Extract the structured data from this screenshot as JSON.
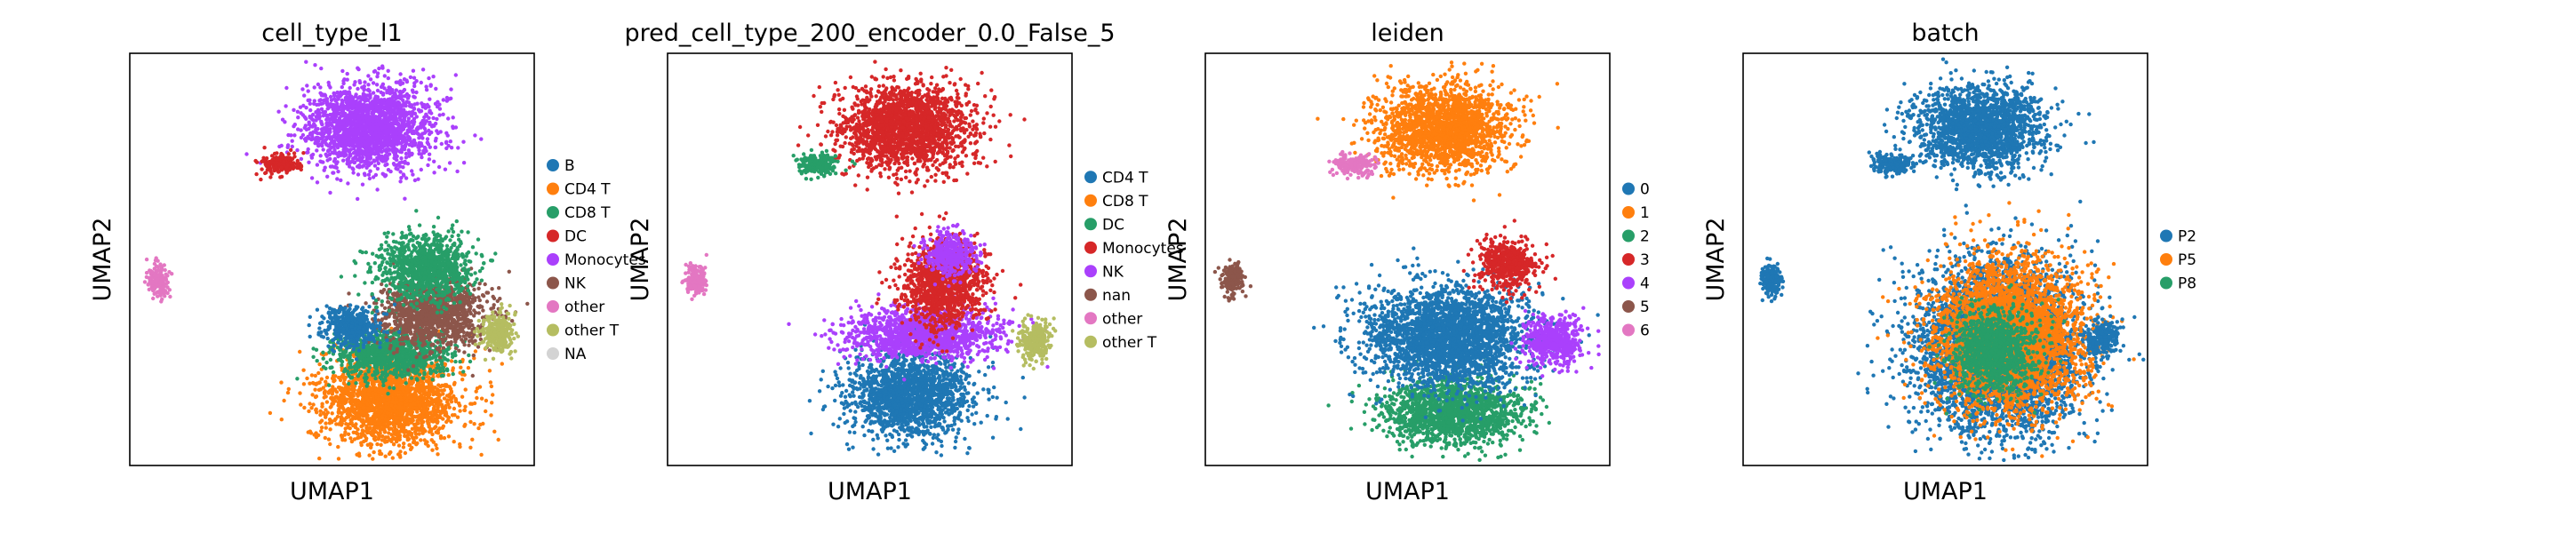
{
  "chart_data": [
    {
      "type": "scatter",
      "title": "cell_type_l1",
      "xlabel": "UMAP1",
      "ylabel": "UMAP2",
      "grid": false,
      "legend_placement": "right",
      "legend": [
        {
          "name": "B",
          "color": "#1f77b4"
        },
        {
          "name": "CD4 T",
          "color": "#ff7f0e"
        },
        {
          "name": "CD8 T",
          "color": "#279e68"
        },
        {
          "name": "DC",
          "color": "#d62728"
        },
        {
          "name": "Monocytes",
          "color": "#aa40fc"
        },
        {
          "name": "NK",
          "color": "#8c564b"
        },
        {
          "name": "other",
          "color": "#e377c2"
        },
        {
          "name": "other T",
          "color": "#b5bd61"
        },
        {
          "name": "NA",
          "color": "#d3d3d3"
        }
      ],
      "clusters": [
        {
          "c": 4,
          "cx": 0.59,
          "cy": 0.82,
          "rx": 0.16,
          "ry": 0.105
        },
        {
          "c": 3,
          "cx": 0.37,
          "cy": 0.73,
          "rx": 0.05,
          "ry": 0.025
        },
        {
          "c": 6,
          "cx": 0.07,
          "cy": 0.45,
          "rx": 0.025,
          "ry": 0.04
        },
        {
          "c": 1,
          "cx": 0.64,
          "cy": 0.16,
          "rx": 0.17,
          "ry": 0.11
        },
        {
          "c": 2,
          "cx": 0.65,
          "cy": 0.27,
          "rx": 0.14,
          "ry": 0.06
        },
        {
          "c": 5,
          "cx": 0.75,
          "cy": 0.37,
          "rx": 0.13,
          "ry": 0.08
        },
        {
          "c": 2,
          "cx": 0.73,
          "cy": 0.48,
          "rx": 0.11,
          "ry": 0.08
        },
        {
          "c": 0,
          "cx": 0.55,
          "cy": 0.34,
          "rx": 0.07,
          "ry": 0.05
        },
        {
          "c": 7,
          "cx": 0.91,
          "cy": 0.32,
          "rx": 0.04,
          "ry": 0.05
        }
      ]
    },
    {
      "type": "scatter",
      "title": "pred_cell_type_200_encoder_0.0_False_5",
      "xlabel": "UMAP1",
      "ylabel": "UMAP2",
      "grid": false,
      "legend_placement": "right",
      "legend": [
        {
          "name": "CD4 T",
          "color": "#1f77b4"
        },
        {
          "name": "CD8 T",
          "color": "#ff7f0e"
        },
        {
          "name": "DC",
          "color": "#279e68"
        },
        {
          "name": "Monocytes",
          "color": "#d62728"
        },
        {
          "name": "NK",
          "color": "#aa40fc"
        },
        {
          "name": "nan",
          "color": "#8c564b"
        },
        {
          "name": "other",
          "color": "#e377c2"
        },
        {
          "name": "other T",
          "color": "#b5bd61"
        }
      ],
      "clusters": [
        {
          "c": 3,
          "cx": 0.59,
          "cy": 0.82,
          "rx": 0.16,
          "ry": 0.105
        },
        {
          "c": 2,
          "cx": 0.37,
          "cy": 0.73,
          "rx": 0.05,
          "ry": 0.025
        },
        {
          "c": 6,
          "cx": 0.07,
          "cy": 0.45,
          "rx": 0.025,
          "ry": 0.04
        },
        {
          "c": 0,
          "cx": 0.6,
          "cy": 0.17,
          "rx": 0.15,
          "ry": 0.1
        },
        {
          "c": 4,
          "cx": 0.63,
          "cy": 0.32,
          "rx": 0.19,
          "ry": 0.06
        },
        {
          "c": 3,
          "cx": 0.68,
          "cy": 0.44,
          "rx": 0.1,
          "ry": 0.1
        },
        {
          "c": 4,
          "cx": 0.7,
          "cy": 0.51,
          "rx": 0.06,
          "ry": 0.05
        },
        {
          "c": 7,
          "cx": 0.91,
          "cy": 0.3,
          "rx": 0.04,
          "ry": 0.05
        }
      ]
    },
    {
      "type": "scatter",
      "title": "leiden",
      "xlabel": "UMAP1",
      "ylabel": "UMAP2",
      "grid": false,
      "legend_placement": "right",
      "legend": [
        {
          "name": "0",
          "color": "#1f77b4"
        },
        {
          "name": "1",
          "color": "#ff7f0e"
        },
        {
          "name": "2",
          "color": "#279e68"
        },
        {
          "name": "3",
          "color": "#d62728"
        },
        {
          "name": "4",
          "color": "#aa40fc"
        },
        {
          "name": "5",
          "color": "#8c564b"
        },
        {
          "name": "6",
          "color": "#e377c2"
        }
      ],
      "clusters": [
        {
          "c": 1,
          "cx": 0.59,
          "cy": 0.82,
          "rx": 0.16,
          "ry": 0.105
        },
        {
          "c": 6,
          "cx": 0.37,
          "cy": 0.73,
          "rx": 0.05,
          "ry": 0.025
        },
        {
          "c": 5,
          "cx": 0.07,
          "cy": 0.45,
          "rx": 0.025,
          "ry": 0.04
        },
        {
          "c": 2,
          "cx": 0.61,
          "cy": 0.13,
          "rx": 0.17,
          "ry": 0.08
        },
        {
          "c": 0,
          "cx": 0.6,
          "cy": 0.31,
          "rx": 0.2,
          "ry": 0.12
        },
        {
          "c": 3,
          "cx": 0.75,
          "cy": 0.49,
          "rx": 0.07,
          "ry": 0.06
        },
        {
          "c": 4,
          "cx": 0.86,
          "cy": 0.3,
          "rx": 0.07,
          "ry": 0.06
        }
      ]
    },
    {
      "type": "scatter",
      "title": "batch",
      "xlabel": "UMAP1",
      "ylabel": "UMAP2",
      "grid": false,
      "legend_placement": "right",
      "legend": [
        {
          "name": "P2",
          "color": "#1f77b4"
        },
        {
          "name": "P5",
          "color": "#ff7f0e"
        },
        {
          "name": "P8",
          "color": "#279e68"
        }
      ],
      "clusters": [
        {
          "c": 0,
          "cx": 0.59,
          "cy": 0.82,
          "rx": 0.16,
          "ry": 0.105
        },
        {
          "c": 0,
          "cx": 0.37,
          "cy": 0.73,
          "rx": 0.05,
          "ry": 0.025
        },
        {
          "c": 0,
          "cx": 0.07,
          "cy": 0.45,
          "rx": 0.025,
          "ry": 0.04
        },
        {
          "c": 0,
          "cx": 0.63,
          "cy": 0.28,
          "rx": 0.2,
          "ry": 0.2
        },
        {
          "c": 1,
          "cx": 0.66,
          "cy": 0.32,
          "rx": 0.18,
          "ry": 0.18
        },
        {
          "c": 2,
          "cx": 0.62,
          "cy": 0.28,
          "rx": 0.1,
          "ry": 0.1
        },
        {
          "c": 0,
          "cx": 0.89,
          "cy": 0.31,
          "rx": 0.04,
          "ry": 0.04
        }
      ]
    }
  ]
}
